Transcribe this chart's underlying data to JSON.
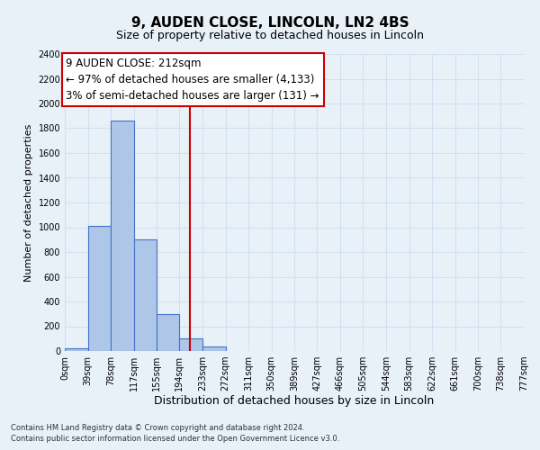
{
  "title": "9, AUDEN CLOSE, LINCOLN, LN2 4BS",
  "subtitle": "Size of property relative to detached houses in Lincoln",
  "xlabel": "Distribution of detached houses by size in Lincoln",
  "ylabel": "Number of detached properties",
  "bin_edges": [
    0,
    39,
    78,
    117,
    155,
    194,
    233,
    272,
    311,
    350,
    389,
    427,
    466,
    505,
    544,
    583,
    622,
    661,
    700,
    738,
    777
  ],
  "bin_labels": [
    "0sqm",
    "39sqm",
    "78sqm",
    "117sqm",
    "155sqm",
    "194sqm",
    "233sqm",
    "272sqm",
    "311sqm",
    "350sqm",
    "389sqm",
    "427sqm",
    "466sqm",
    "505sqm",
    "544sqm",
    "583sqm",
    "622sqm",
    "661sqm",
    "700sqm",
    "738sqm",
    "777sqm"
  ],
  "bar_heights": [
    25,
    1010,
    1860,
    900,
    300,
    100,
    40,
    0,
    0,
    0,
    0,
    0,
    0,
    0,
    0,
    0,
    0,
    0,
    0,
    0
  ],
  "bar_color": "#aec6e8",
  "bar_edge_color": "#4472c4",
  "ylim": [
    0,
    2400
  ],
  "yticks": [
    0,
    200,
    400,
    600,
    800,
    1000,
    1200,
    1400,
    1600,
    1800,
    2000,
    2200,
    2400
  ],
  "vline_x": 212,
  "vline_color": "#cc0000",
  "annotation_title": "9 AUDEN CLOSE: 212sqm",
  "annotation_line1": "← 97% of detached houses are smaller (4,133)",
  "annotation_line2": "3% of semi-detached houses are larger (131) →",
  "annotation_box_color": "#ffffff",
  "annotation_border_color": "#cc0000",
  "grid_color": "#ccddee",
  "background_color": "#e8f0f8",
  "footer1": "Contains HM Land Registry data © Crown copyright and database right 2024.",
  "footer2": "Contains public sector information licensed under the Open Government Licence v3.0.",
  "title_fontsize": 11,
  "subtitle_fontsize": 9,
  "xlabel_fontsize": 9,
  "ylabel_fontsize": 8,
  "tick_fontsize": 7,
  "annotation_fontsize": 8.5,
  "footer_fontsize": 6
}
